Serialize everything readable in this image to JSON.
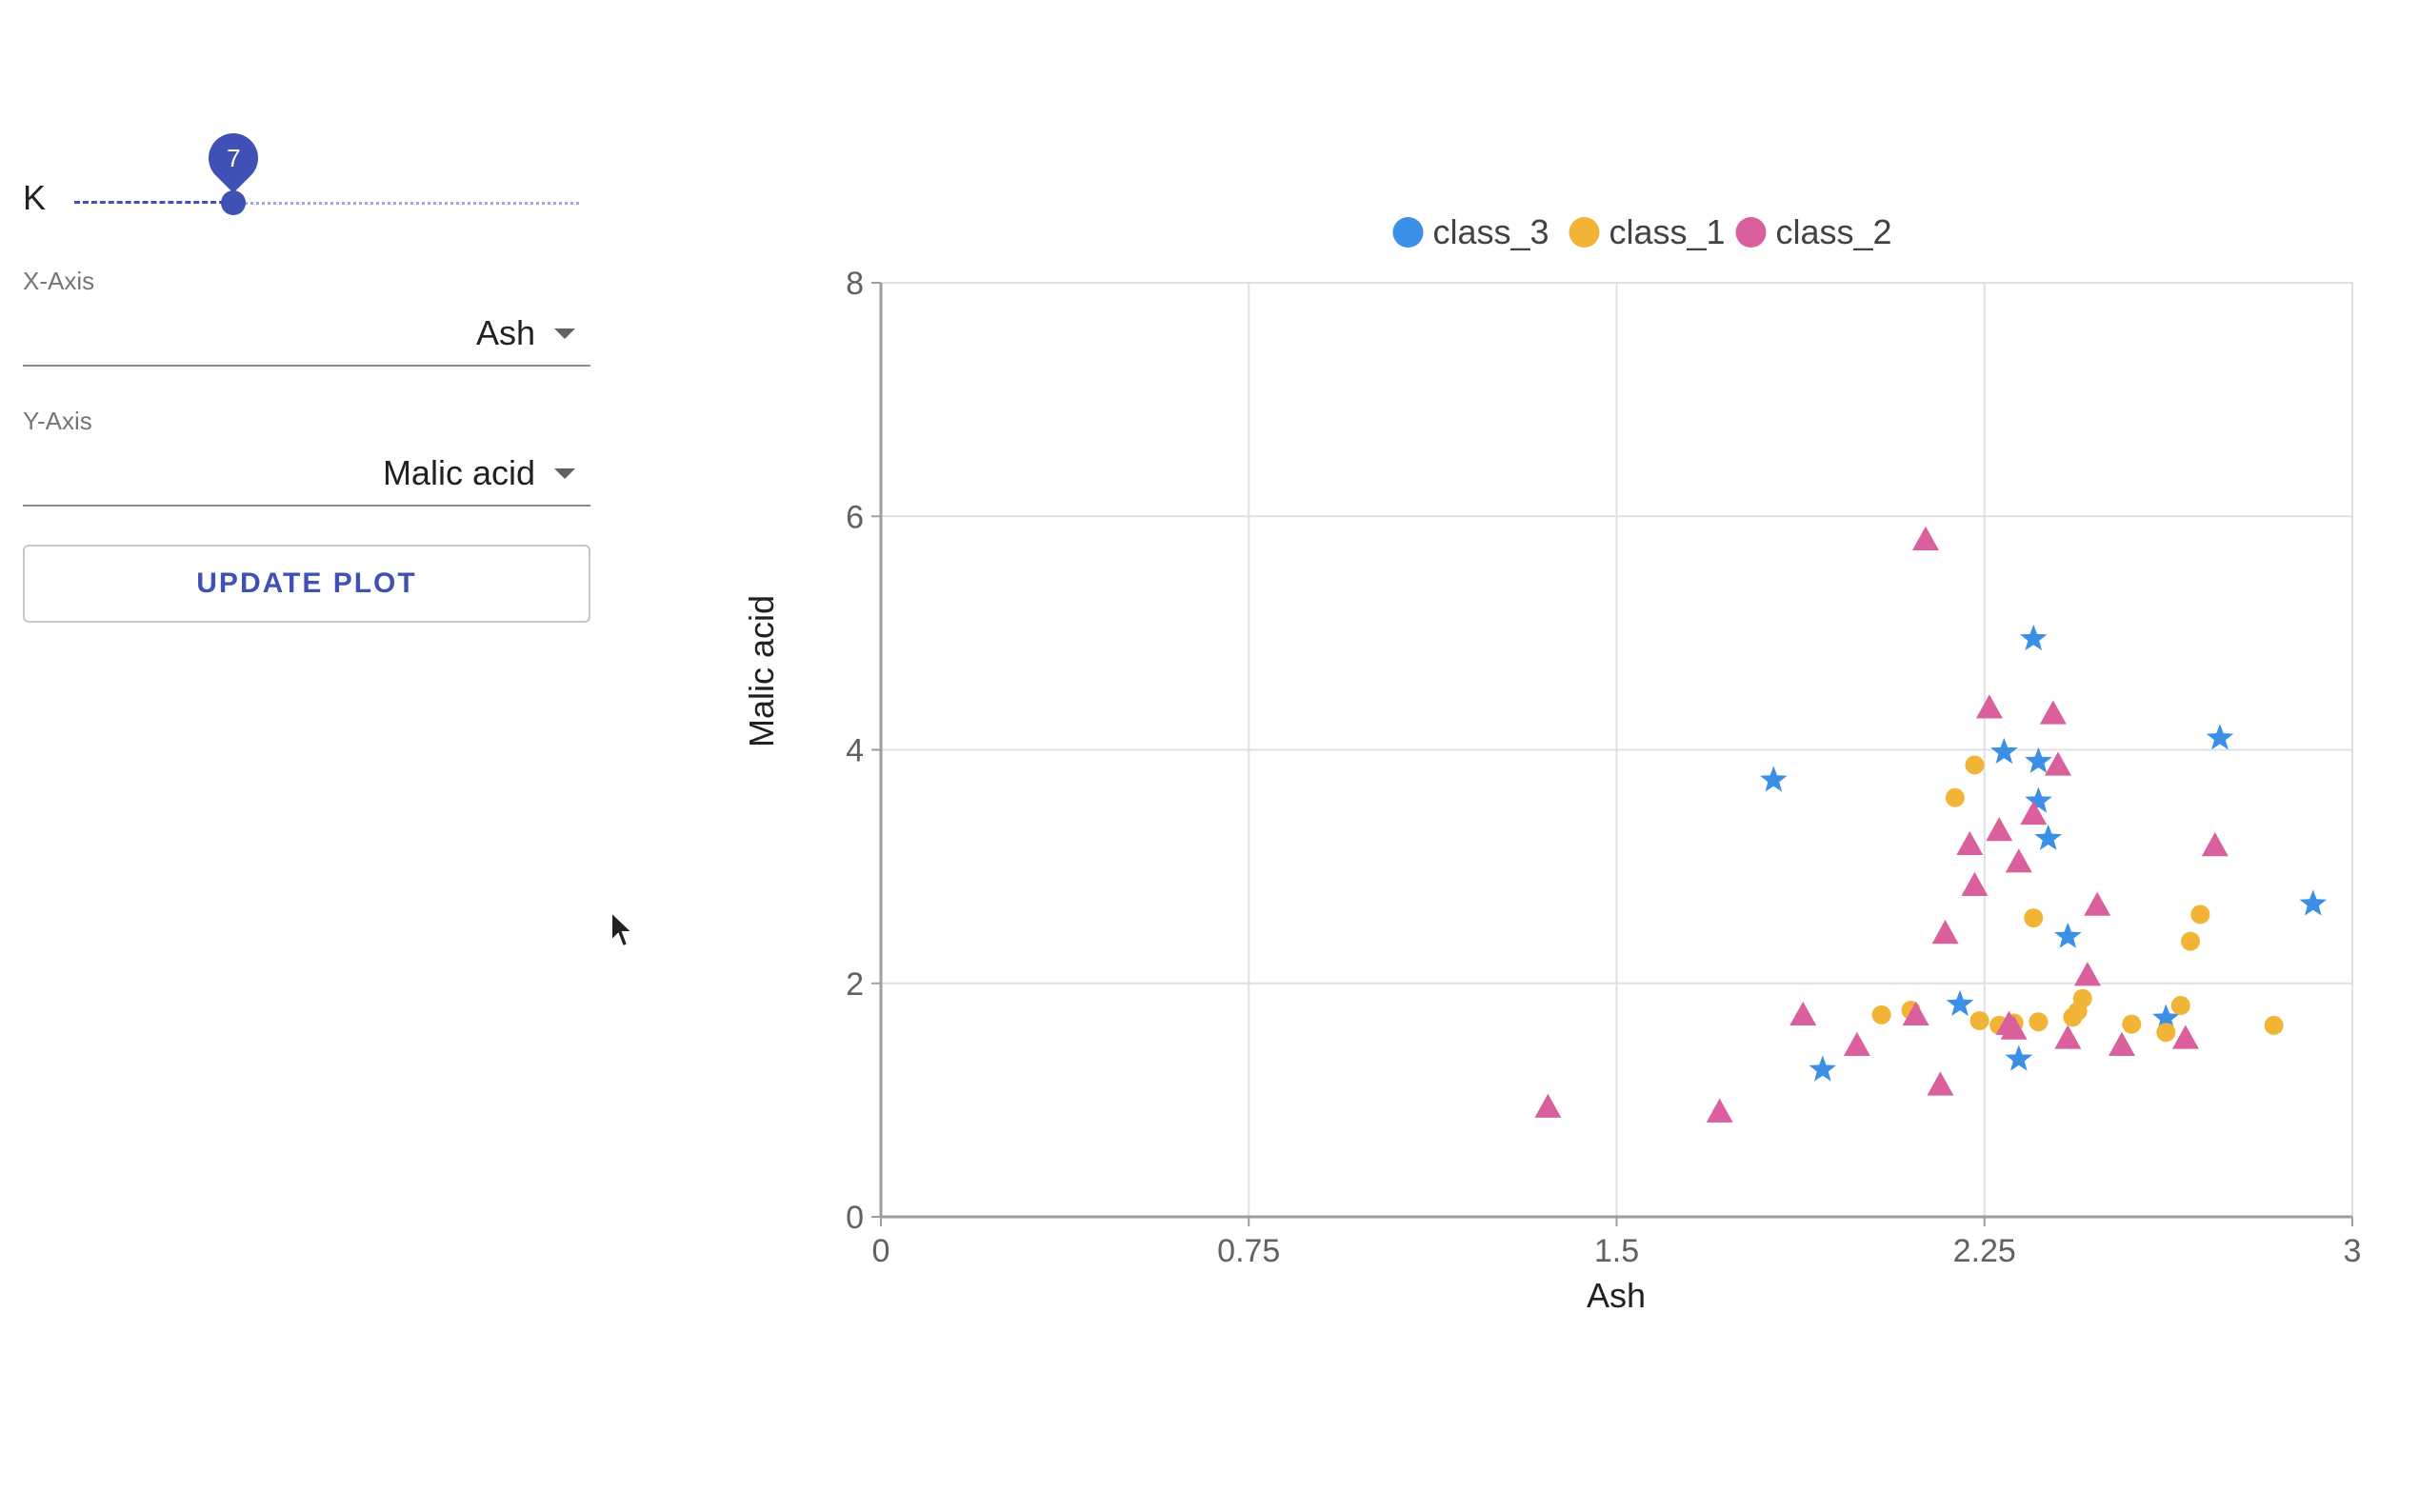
{
  "controls": {
    "k_label": "K",
    "k_value": 7,
    "k_min": 1,
    "k_max": 20,
    "x_axis_label": "X-Axis",
    "x_axis_value": "Ash",
    "y_axis_label": "Y-Axis",
    "y_axis_value": "Malic acid",
    "update_button": "UPDATE PLOT"
  },
  "chart_data": {
    "type": "scatter",
    "xlabel": "Ash",
    "ylabel": "Malic acid",
    "xlim": [
      0,
      3
    ],
    "ylim": [
      0,
      8
    ],
    "x_ticks": [
      "0",
      "0.75",
      "1.5",
      "2.25",
      "3"
    ],
    "y_ticks": [
      "0",
      "2",
      "4",
      "6",
      "8"
    ],
    "grid": true,
    "legend_position": "top-center",
    "series": [
      {
        "name": "class_3",
        "color": "#3b8fe5",
        "marker": "star",
        "points": [
          [
            1.82,
            3.74
          ],
          [
            1.92,
            1.26
          ],
          [
            2.2,
            1.82
          ],
          [
            2.29,
            3.98
          ],
          [
            2.32,
            1.35
          ],
          [
            2.35,
            4.95
          ],
          [
            2.36,
            3.9
          ],
          [
            2.36,
            3.56
          ],
          [
            2.38,
            3.24
          ],
          [
            2.42,
            2.4
          ],
          [
            2.62,
            1.7
          ],
          [
            2.73,
            4.1
          ],
          [
            2.92,
            2.68
          ]
        ]
      },
      {
        "name": "class_1",
        "color": "#f2b437",
        "marker": "circle",
        "points": [
          [
            2.04,
            1.73
          ],
          [
            2.1,
            1.77
          ],
          [
            2.19,
            3.59
          ],
          [
            2.23,
            3.87
          ],
          [
            2.24,
            1.68
          ],
          [
            2.28,
            1.64
          ],
          [
            2.31,
            1.66
          ],
          [
            2.35,
            2.56
          ],
          [
            2.36,
            1.67
          ],
          [
            2.43,
            1.71
          ],
          [
            2.44,
            1.76
          ],
          [
            2.45,
            1.87
          ],
          [
            2.55,
            1.65
          ],
          [
            2.62,
            1.58
          ],
          [
            2.65,
            1.81
          ],
          [
            2.67,
            2.36
          ],
          [
            2.69,
            2.59
          ],
          [
            2.84,
            1.64
          ]
        ]
      },
      {
        "name": "class_2",
        "color": "#d9609c",
        "marker": "triangle",
        "points": [
          [
            1.36,
            0.94
          ],
          [
            1.71,
            0.9
          ],
          [
            1.88,
            1.73
          ],
          [
            1.99,
            1.47
          ],
          [
            2.11,
            1.73
          ],
          [
            2.13,
            5.8
          ],
          [
            2.16,
            1.13
          ],
          [
            2.17,
            2.43
          ],
          [
            2.22,
            3.19
          ],
          [
            2.23,
            2.84
          ],
          [
            2.26,
            4.36
          ],
          [
            2.28,
            3.31
          ],
          [
            2.3,
            1.65
          ],
          [
            2.31,
            1.61
          ],
          [
            2.32,
            3.04
          ],
          [
            2.35,
            3.45
          ],
          [
            2.39,
            4.31
          ],
          [
            2.4,
            3.87
          ],
          [
            2.42,
            1.53
          ],
          [
            2.46,
            2.07
          ],
          [
            2.48,
            2.67
          ],
          [
            2.53,
            1.47
          ],
          [
            2.66,
            1.53
          ],
          [
            2.72,
            3.18
          ]
        ]
      }
    ]
  }
}
